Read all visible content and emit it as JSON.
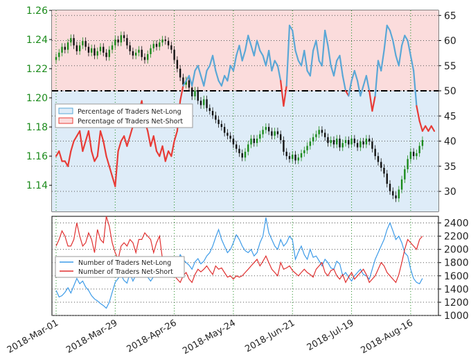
{
  "chart_data": [
    {
      "type": "line",
      "panel": "top",
      "title": "",
      "xlabel": "",
      "ylabel": "",
      "x_ticks": [
        "2018-Mar-01",
        "2018-Mar-29",
        "2018-Apr-26",
        "2018-May-24",
        "2018-Jun-21",
        "2018-Jul-19",
        "2018-Aug-16"
      ],
      "left_axis": {
        "ticks": [
          "1.26",
          "1.24",
          "1.22",
          "1.20",
          "1.18",
          "1.16",
          "1.14"
        ],
        "ylim": [
          1.122,
          1.26
        ],
        "color": "#1a8a1a"
      },
      "right_axis": {
        "ticks": [
          "65",
          "60",
          "55",
          "50",
          "45",
          "40",
          "35",
          "30"
        ],
        "ylim": [
          26,
          66
        ]
      },
      "reference_line": {
        "axis": "right",
        "value": 50,
        "style": "dash-dot"
      },
      "legend": {
        "placement": "upper-left",
        "entries": [
          "Percentage of Traders Net-Long",
          "Percentage of Traders Net-Short"
        ]
      },
      "colors": {
        "net_long": "#5aa7d6",
        "net_short": "#e83b36",
        "long_fill": "#deecf8",
        "short_fill": "#fbdcdc",
        "candle_up": "#1a8a1a",
        "candle_down": "#111111"
      },
      "price_closes": [
        1.228,
        1.231,
        1.235,
        1.233,
        1.238,
        1.241,
        1.236,
        1.232,
        1.236,
        1.239,
        1.235,
        1.231,
        1.234,
        1.229,
        1.232,
        1.235,
        1.231,
        1.228,
        1.233,
        1.236,
        1.24,
        1.238,
        1.243,
        1.241,
        1.236,
        1.232,
        1.229,
        1.231,
        1.233,
        1.228,
        1.226,
        1.23,
        1.234,
        1.237,
        1.235,
        1.238,
        1.24,
        1.239,
        1.236,
        1.233,
        1.226,
        1.22,
        1.214,
        1.209,
        1.212,
        1.207,
        1.201,
        1.205,
        1.198,
        1.195,
        1.199,
        1.193,
        1.191,
        1.188,
        1.185,
        1.182,
        1.18,
        1.176,
        1.174,
        1.172,
        1.168,
        1.165,
        1.162,
        1.159,
        1.163,
        1.168,
        1.172,
        1.169,
        1.172,
        1.175,
        1.178,
        1.18,
        1.177,
        1.174,
        1.177,
        1.175,
        1.171,
        1.163,
        1.16,
        1.158,
        1.161,
        1.157,
        1.159,
        1.162,
        1.164,
        1.167,
        1.17,
        1.173,
        1.175,
        1.178,
        1.176,
        1.173,
        1.169,
        1.171,
        1.168,
        1.172,
        1.166,
        1.169,
        1.171,
        1.168,
        1.172,
        1.169,
        1.166,
        1.17,
        1.168,
        1.172,
        1.17,
        1.165,
        1.16,
        1.156,
        1.152,
        1.148,
        1.141,
        1.136,
        1.133,
        1.131,
        1.137,
        1.144,
        1.151,
        1.158,
        1.163,
        1.16,
        1.162,
        1.167,
        1.171
      ],
      "percent_net_long": [
        37,
        38,
        36,
        36,
        35,
        38,
        40,
        41,
        42,
        38,
        40,
        42,
        38,
        36,
        37,
        42,
        40,
        37,
        35,
        33,
        31,
        38,
        40,
        41,
        39,
        41,
        43,
        44,
        46,
        48,
        44,
        42,
        39,
        41,
        38,
        37,
        39,
        36,
        38,
        37,
        40,
        42,
        48,
        51,
        52,
        53,
        51,
        54,
        55,
        53,
        51,
        54,
        55,
        57,
        54,
        52,
        51,
        53,
        52,
        55,
        54,
        57,
        59,
        56,
        58,
        61,
        59,
        57,
        60,
        58,
        57,
        55,
        58,
        54,
        56,
        55,
        52,
        47,
        51,
        63,
        62,
        58,
        56,
        55,
        58,
        54,
        53,
        58,
        60,
        56,
        55,
        62,
        59,
        55,
        53,
        56,
        57,
        53,
        50,
        49,
        52,
        54,
        52,
        49,
        51,
        53,
        50,
        46,
        49,
        56,
        54,
        58,
        63,
        62,
        60,
        57,
        55,
        59,
        61,
        60,
        57,
        54,
        47,
        44,
        42,
        43,
        42,
        43,
        42
      ]
    },
    {
      "type": "line",
      "panel": "bottom",
      "title": "",
      "xlabel": "",
      "ylabel": "",
      "x_ticks": [
        "2018-Mar-01",
        "2018-Mar-29",
        "2018-Apr-26",
        "2018-May-24",
        "2018-Jun-21",
        "2018-Jul-19",
        "2018-Aug-16"
      ],
      "right_axis": {
        "ticks": [
          "2400",
          "2200",
          "2000",
          "1800",
          "1600",
          "1400",
          "1200",
          "1000"
        ],
        "ylim": [
          1000,
          2500
        ]
      },
      "legend": {
        "placement": "center-left",
        "entries": [
          "Number of Traders Net-Long",
          "Number of Traders Net-Short"
        ]
      },
      "series": [
        {
          "name": "Number of Traders Net-Long",
          "color": "#3d9be8",
          "values": [
            1380,
            1280,
            1300,
            1350,
            1420,
            1340,
            1450,
            1560,
            1480,
            1520,
            1430,
            1380,
            1300,
            1250,
            1220,
            1180,
            1150,
            1110,
            1200,
            1350,
            1500,
            1560,
            1610,
            1530,
            1490,
            1640,
            1520,
            1610,
            1700,
            1660,
            1620,
            1580,
            1520,
            1590,
            1650,
            1700,
            1750,
            1800,
            1700,
            1820,
            1860,
            1780,
            1920,
            1850,
            1800,
            1760,
            1700,
            1810,
            1860,
            1780,
            1820,
            1900,
            1950,
            2050,
            2180,
            2300,
            2150,
            2050,
            1950,
            2000,
            2100,
            2220,
            2150,
            2050,
            1980,
            1950,
            2000,
            1900,
            1950,
            2100,
            2200,
            2480,
            2250,
            2150,
            2050,
            2000,
            2150,
            2050,
            2100,
            2200,
            2140,
            1850,
            1960,
            2050,
            1920,
            1850,
            2000,
            1880,
            1900,
            1830,
            1750,
            1850,
            1800,
            1720,
            1700,
            1820,
            1780,
            1600,
            1650,
            1580,
            1520,
            1600,
            1650,
            1700,
            1620,
            1600,
            1550,
            1700,
            1850,
            1950,
            2050,
            2150,
            2300,
            2400,
            2280,
            2150,
            2200,
            2100,
            1950,
            1900,
            1700,
            1560,
            1500,
            1480,
            1560
          ]
        },
        {
          "name": "Number of Traders Net-Short",
          "color": "#e03030",
          "values": [
            2050,
            2150,
            2280,
            2200,
            2050,
            2050,
            2150,
            2400,
            2200,
            2050,
            2100,
            2250,
            2150,
            1950,
            2300,
            2150,
            2100,
            2500,
            2350,
            2100,
            1950,
            1850,
            2050,
            2100,
            2050,
            2150,
            2100,
            1950,
            2150,
            2150,
            2250,
            2200,
            2150,
            1950,
            2100,
            2200,
            1850,
            1780,
            1720,
            1650,
            1600,
            1550,
            1500,
            1600,
            1650,
            1550,
            1500,
            1620,
            1700,
            1660,
            1700,
            1750,
            1680,
            1620,
            1750,
            1700,
            1720,
            1650,
            1580,
            1600,
            1550,
            1600,
            1580,
            1600,
            1650,
            1700,
            1750,
            1800,
            1850,
            1750,
            1820,
            1900,
            1800,
            1700,
            1650,
            1600,
            1800,
            1700,
            1720,
            1750,
            1680,
            1640,
            1600,
            1650,
            1700,
            1650,
            1620,
            1580,
            1700,
            1750,
            1800,
            1650,
            1600,
            1680,
            1700,
            1600,
            1550,
            1620,
            1500,
            1580,
            1650,
            1550,
            1600,
            1650,
            1700,
            1620,
            1500,
            1550,
            1600,
            1700,
            1800,
            1750,
            1650,
            1600,
            1550,
            1500,
            1620,
            1800,
            2000,
            2150,
            2100,
            2050,
            2000,
            2150,
            2200
          ]
        }
      ]
    }
  ]
}
